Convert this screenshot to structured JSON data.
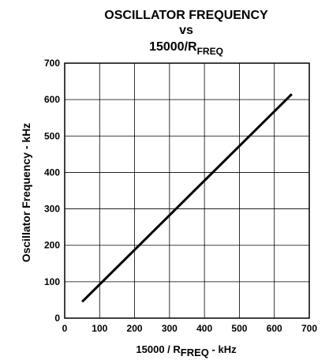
{
  "chart_data": {
    "type": "line",
    "title": {
      "line1": "OSCILLATOR FREQUENCY",
      "line2": "vs",
      "line3_main": "15000/R",
      "line3_sub": "FREQ"
    },
    "xlabel": {
      "prefix": "15000 / R",
      "sub": "FREQ",
      "suffix": " - kHz"
    },
    "ylabel": "Oscillator Frequency - kHz",
    "xlim": [
      0,
      700
    ],
    "ylim": [
      0,
      700
    ],
    "x_ticks": [
      "0",
      "100",
      "200",
      "300",
      "400",
      "500",
      "600",
      "700"
    ],
    "y_ticks": [
      "0",
      "100",
      "200",
      "300",
      "400",
      "500",
      "600",
      "700"
    ],
    "grid": true,
    "series": [
      {
        "points": [
          {
            "x": 50,
            "y": 45
          },
          {
            "x": 650,
            "y": 615
          }
        ],
        "color": "#000000"
      }
    ]
  }
}
